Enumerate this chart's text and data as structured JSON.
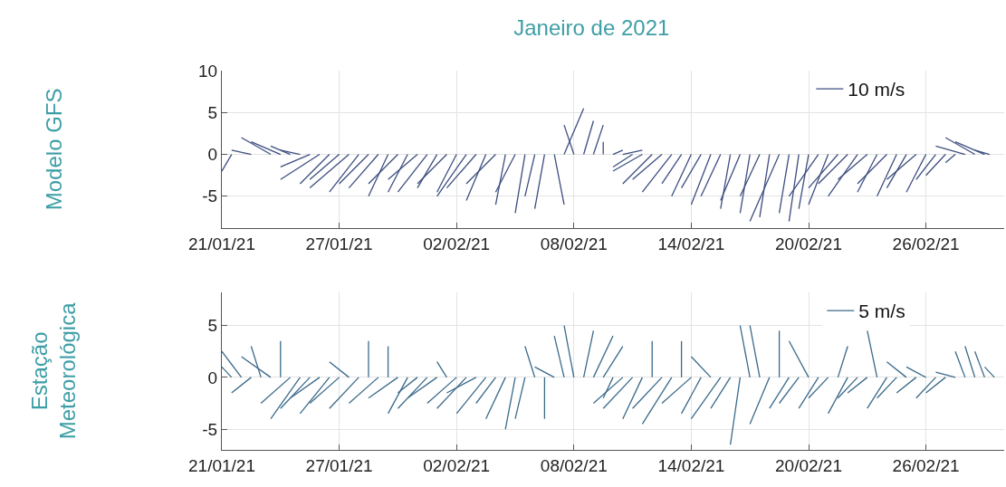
{
  "chart_data": [
    {
      "type": "line",
      "title": "Janeiro de 2021",
      "ylabel": "Modelo GFS",
      "grid": true,
      "legend": "top right",
      "xlim": [
        "2021-01-21",
        "2021-03-02"
      ],
      "ylim": [
        -8.8,
        10
      ],
      "yticks": [
        -5,
        0,
        5,
        10
      ],
      "xticks": [
        {
          "value": "2021-01-21",
          "label": "21/01/21"
        },
        {
          "value": "2021-01-27",
          "label": "27/01/21"
        },
        {
          "value": "2021-02-02",
          "label": "02/02/21"
        },
        {
          "value": "2021-02-08",
          "label": "08/02/21"
        },
        {
          "value": "2021-02-14",
          "label": "14/02/21"
        },
        {
          "value": "2021-02-20",
          "label": "20/02/21"
        },
        {
          "value": "2021-02-26",
          "label": "26/02/21"
        }
      ],
      "series": [
        {
          "name": "10 m/s",
          "color": "#3d4e80",
          "x": [
            "2021-01-21T12:00",
            "2021-01-21T00:00",
            null,
            "2021-01-22T12:00",
            "2021-01-21T12:00",
            null,
            "2021-01-23T12:00",
            "2021-01-22T00:00",
            null,
            "2021-01-24T00:00",
            "2021-01-22T12:00",
            null,
            "2021-01-24T12:00",
            "2021-01-23T12:00",
            null,
            "2021-01-25T00:00",
            "2021-01-24T00:00",
            null,
            "2021-01-25T12:00",
            "2021-01-24T00:00",
            null,
            "2021-01-26T00:00",
            "2021-01-24T00:00",
            null,
            "2021-01-26T12:00",
            "2021-01-25T00:00",
            null,
            "2021-01-27T00:00",
            "2021-01-25T12:00",
            null,
            "2021-01-27T12:00",
            "2021-01-25T12:00",
            null,
            "2021-01-28T00:00",
            "2021-01-26T12:00",
            null,
            "2021-01-28T12:00",
            "2021-01-27T00:00",
            null,
            "2021-01-29T00:00",
            "2021-01-27T12:00",
            null,
            "2021-01-29T12:00",
            "2021-01-28T12:00",
            null,
            "2021-01-30T00:00",
            "2021-01-28T12:00",
            null,
            "2021-01-30T12:00",
            "2021-01-29T12:00",
            null,
            "2021-01-31T00:00",
            "2021-01-29T12:00",
            null,
            "2021-01-31T12:00",
            "2021-01-30T00:00",
            null,
            "2021-02-01T00:00",
            "2021-01-31T00:00",
            null,
            "2021-02-01T12:00",
            "2021-01-31T00:00",
            null,
            "2021-02-02T00:00",
            "2021-02-01T00:00",
            null,
            "2021-02-02T12:00",
            "2021-02-01T00:00",
            null,
            "2021-02-03T00:00",
            "2021-02-01T12:00",
            null,
            "2021-02-03T12:00",
            "2021-02-02T12:00",
            null,
            "2021-02-04T00:00",
            "2021-02-02T12:00",
            null,
            "2021-02-04T12:00",
            "2021-02-04T00:00",
            null,
            "2021-02-05T00:00",
            "2021-02-04T00:00",
            null,
            "2021-02-05T12:00",
            "2021-02-05T00:00",
            null,
            "2021-02-06T00:00",
            "2021-02-05T12:00",
            null,
            "2021-02-06T12:00",
            "2021-02-06T00:00",
            null,
            "2021-02-07T00:00",
            "2021-02-07T12:00",
            null,
            "2021-02-08T00:00",
            "2021-02-07T12:00",
            null,
            "2021-02-07T12:00",
            "2021-02-08T12:00",
            null,
            "2021-02-08T12:00",
            "2021-02-09T00:00",
            null,
            "2021-02-09T00:00",
            "2021-02-09T12:00",
            null,
            "2021-02-09T12:00",
            "2021-02-09T12:00",
            null,
            "2021-02-10T00:00",
            "2021-02-10T12:00",
            null,
            "2021-02-10T12:00",
            "2021-02-11T12:00",
            null,
            "2021-02-11T00:00",
            "2021-02-10T00:00",
            null,
            "2021-02-11T12:00",
            "2021-02-10T00:00",
            null,
            "2021-02-12T00:00",
            "2021-02-10T12:00",
            null,
            "2021-02-12T12:00",
            "2021-02-11T00:00",
            null,
            "2021-02-13T00:00",
            "2021-02-11T12:00",
            null,
            "2021-02-13T12:00",
            "2021-02-12T12:00",
            null,
            "2021-02-14T00:00",
            "2021-02-13T00:00",
            null,
            "2021-02-14T12:00",
            "2021-02-13T12:00",
            null,
            "2021-02-15T00:00",
            "2021-02-14T00:00",
            null,
            "2021-02-15T12:00",
            "2021-02-14T12:00",
            null,
            "2021-02-16T00:00",
            "2021-02-15T12:00",
            null,
            "2021-02-16T12:00",
            "2021-02-15T12:00",
            null,
            "2021-02-17T00:00",
            "2021-02-16T12:00",
            null,
            "2021-02-17T12:00",
            "2021-02-16T12:00",
            null,
            "2021-02-18T00:00",
            "2021-02-17T12:00",
            null,
            "2021-02-18T12:00",
            "2021-02-17T00:00",
            null,
            "2021-02-19T00:00",
            "2021-02-18T12:00",
            null,
            "2021-02-19T12:00",
            "2021-02-19T00:00",
            null,
            "2021-02-20T00:00",
            "2021-02-19T12:00",
            null,
            "2021-02-20T12:00",
            "2021-02-19T00:00",
            null,
            "2021-02-21T00:00",
            "2021-02-20T00:00",
            null,
            "2021-02-21T12:00",
            "2021-02-20T00:00",
            null,
            "2021-02-22T00:00",
            "2021-02-20T12:00",
            null,
            "2021-02-22T12:00",
            "2021-02-21T00:00",
            null,
            "2021-02-23T00:00",
            "2021-02-21T12:00",
            null,
            "2021-02-23T12:00",
            "2021-02-22T12:00",
            null,
            "2021-02-24T00:00",
            "2021-02-22T12:00",
            null,
            "2021-02-24T12:00",
            "2021-02-23T12:00",
            null,
            "2021-02-25T00:00",
            "2021-02-24T00:00",
            null,
            "2021-02-25T12:00",
            "2021-02-24T00:00",
            null,
            "2021-02-26T00:00",
            "2021-02-25T00:00",
            null,
            "2021-02-26T12:00",
            "2021-02-25T12:00",
            null,
            "2021-02-27T00:00",
            "2021-02-26T00:00",
            null,
            "2021-02-27T12:00",
            "2021-02-27T00:00",
            null,
            "2021-02-28T00:00",
            "2021-02-26T12:00",
            null,
            "2021-02-28T12:00",
            "2021-02-27T00:00",
            null,
            "2021-03-01T00:00",
            "2021-02-27T12:00",
            null,
            "2021-03-01T06:00",
            "2021-02-28T12:00"
          ],
          "values": [
            0,
            -2,
            null,
            0,
            0.5,
            null,
            0,
            2,
            null,
            0,
            1.5,
            null,
            0,
            1,
            null,
            0,
            0.5,
            null,
            0,
            -1.5,
            null,
            0,
            -3,
            null,
            0,
            -3.5,
            null,
            0,
            -3,
            null,
            0,
            -4,
            null,
            0,
            -4.5,
            null,
            0,
            -3.5,
            null,
            0,
            -4,
            null,
            0,
            -5,
            null,
            0,
            -3.5,
            null,
            0,
            -4.5,
            null,
            0,
            -3,
            null,
            0,
            -4.5,
            null,
            0,
            -4,
            null,
            0,
            -3.5,
            null,
            0,
            -4.5,
            null,
            0,
            -5,
            null,
            0,
            -4,
            null,
            0,
            -5.5,
            null,
            0,
            -3.5,
            null,
            0,
            -6,
            null,
            0,
            -4.5,
            null,
            0,
            -7,
            null,
            0,
            -5,
            null,
            0,
            -6.5,
            null,
            0,
            -6,
            null,
            0,
            3.5,
            null,
            0,
            5.5,
            null,
            0,
            4,
            null,
            0,
            3.5,
            null,
            0,
            1.5,
            null,
            0,
            0.5,
            null,
            0,
            0.5,
            null,
            0,
            -1.5,
            null,
            0,
            -2,
            null,
            0,
            -3.5,
            null,
            0,
            -3,
            null,
            0,
            -4.5,
            null,
            0,
            -3.5,
            null,
            0,
            -5,
            null,
            0,
            -4,
            null,
            0,
            -6,
            null,
            0,
            -5,
            null,
            0,
            -6.5,
            null,
            0,
            -5.5,
            null,
            0,
            -7,
            null,
            0,
            -5,
            null,
            0,
            -7.5,
            null,
            0,
            -8,
            null,
            0,
            -7,
            null,
            0,
            -8,
            null,
            0,
            -6.5,
            null,
            0,
            -5,
            null,
            0,
            -6,
            null,
            0,
            -4,
            null,
            0,
            -3.5,
            null,
            0,
            -5,
            null,
            0,
            -3,
            null,
            0,
            -4.5,
            null,
            0,
            -3.5,
            null,
            0,
            -5,
            null,
            0,
            -4,
            null,
            0,
            -3,
            null,
            0,
            -4.5,
            null,
            0,
            -3,
            null,
            0,
            -2.5,
            null,
            0,
            -1,
            null,
            0,
            1,
            null,
            0,
            2,
            null,
            0,
            1.5,
            null,
            0,
            0.5
          ]
        }
      ]
    },
    {
      "type": "line",
      "ylabel": "Estação\nMeteorológica",
      "grid": true,
      "legend": "top right",
      "xlim": [
        "2021-01-21",
        "2021-03-02"
      ],
      "ylim": [
        -7,
        8.2
      ],
      "yticks": [
        -5,
        0,
        5
      ],
      "xticks": [
        {
          "value": "2021-01-21",
          "label": "21/01/21"
        },
        {
          "value": "2021-01-27",
          "label": "27/01/21"
        },
        {
          "value": "2021-02-02",
          "label": "02/02/21"
        },
        {
          "value": "2021-02-08",
          "label": "08/02/21"
        },
        {
          "value": "2021-02-14",
          "label": "14/02/21"
        },
        {
          "value": "2021-02-20",
          "label": "20/02/21"
        },
        {
          "value": "2021-02-26",
          "label": "26/02/21"
        }
      ],
      "series": [
        {
          "name": "5 m/s",
          "color": "#3a6a8a",
          "x": [
            "2021-01-21T12:00",
            "2021-01-21T00:00",
            null,
            "2021-01-22T00:00",
            "2021-01-21T00:00",
            null,
            "2021-01-22T12:00",
            "2021-01-21T12:00",
            null,
            "2021-01-23T00:00",
            "2021-01-22T12:00",
            null,
            "2021-01-23T12:00",
            "2021-01-22T00:00",
            null,
            "2021-01-24T00:00",
            "2021-01-24T00:00",
            null,
            "2021-01-24T12:00",
            "2021-01-23T00:00",
            null,
            "2021-01-25T00:00",
            "2021-01-23T12:00",
            null,
            "2021-01-25T12:00",
            "2021-01-24T00:00",
            null,
            "2021-01-26T00:00",
            "2021-01-24T12:00",
            null,
            "2021-01-26T12:00",
            "2021-01-25T00:00",
            null,
            "2021-01-27T00:00",
            "2021-01-25T12:00",
            null,
            "2021-01-27T12:00",
            "2021-01-26T12:00",
            null,
            "2021-01-28T00:00",
            "2021-01-26T12:00",
            null,
            "2021-01-28T12:00",
            "2021-01-28T12:00",
            null,
            "2021-01-29T00:00",
            "2021-01-27T12:00",
            null,
            "2021-01-29T12:00",
            "2021-01-29T12:00",
            null,
            "2021-01-30T00:00",
            "2021-01-28T12:00",
            null,
            "2021-01-30T12:00",
            "2021-01-29T12:00",
            null,
            "2021-01-31T00:00",
            "2021-01-30T00:00",
            null,
            "2021-01-31T12:00",
            "2021-01-30T00:00",
            null,
            "2021-02-01T00:00",
            "2021-01-30T12:00",
            null,
            "2021-02-01T12:00",
            "2021-02-01T00:00",
            null,
            "2021-02-02T00:00",
            "2021-01-31T12:00",
            null,
            "2021-02-02T12:00",
            "2021-02-01T00:00",
            null,
            "2021-02-03T00:00",
            "2021-02-01T12:00",
            null,
            "2021-02-03T12:00",
            "2021-02-02T00:00",
            null,
            "2021-02-04T00:00",
            "2021-02-03T00:00",
            null,
            "2021-02-04T12:00",
            "2021-02-03T12:00",
            null,
            "2021-02-05T00:00",
            "2021-02-04T12:00",
            null,
            "2021-02-05T12:00",
            "2021-02-05T00:00",
            null,
            "2021-02-06T00:00",
            "2021-02-05T12:00",
            null,
            "2021-02-06T12:00",
            "2021-02-06T12:00",
            null,
            "2021-02-07T00:00",
            "2021-02-06T00:00",
            null,
            "2021-02-07T12:00",
            "2021-02-07T00:00",
            null,
            "2021-02-08T00:00",
            "2021-02-07T12:00",
            null,
            "2021-02-08T12:00",
            "2021-02-09T00:00",
            null,
            "2021-02-09T00:00",
            "2021-02-10T00:00",
            null,
            "2021-02-09T12:00",
            "2021-02-10T12:00",
            null,
            "2021-02-10T00:00",
            "2021-02-09T12:00",
            null,
            "2021-02-10T12:00",
            "2021-02-09T00:00",
            null,
            "2021-02-11T00:00",
            "2021-02-09T12:00",
            null,
            "2021-02-11T12:00",
            "2021-02-10T12:00",
            null,
            "2021-02-12T00:00",
            "2021-02-12T00:00",
            null,
            "2021-02-12T12:00",
            "2021-02-11T00:00",
            null,
            "2021-02-13T00:00",
            "2021-02-11T12:00",
            null,
            "2021-02-13T12:00",
            "2021-02-13T12:00",
            null,
            "2021-02-14T00:00",
            "2021-02-12T12:00",
            null,
            "2021-02-14T12:00",
            "2021-02-13T12:00",
            null,
            "2021-02-15T00:00",
            "2021-02-14T00:00",
            null,
            "2021-02-15T12:00",
            "2021-02-14T00:00",
            null,
            "2021-02-16T00:00",
            "2021-02-15T00:00",
            null,
            "2021-02-16T12:00",
            "2021-02-16T00:00",
            null,
            "2021-02-17T00:00",
            "2021-02-16T12:00",
            null,
            "2021-02-17T12:00",
            "2021-02-17T00:00",
            null,
            "2021-02-18T00:00",
            "2021-02-17T00:00",
            null,
            "2021-02-18T12:00",
            "2021-02-18T12:00",
            null,
            "2021-02-19T00:00",
            "2021-02-18T00:00",
            null,
            "2021-02-19T12:00",
            "2021-02-18T12:00",
            null,
            "2021-02-20T00:00",
            "2021-02-19T00:00",
            null,
            "2021-02-20T12:00",
            "2021-02-19T12:00",
            null,
            "2021-02-21T00:00",
            "2021-02-20T00:00",
            null,
            "2021-02-21T12:00",
            "2021-02-22T00:00",
            null,
            "2021-02-22T00:00",
            "2021-02-21T00:00",
            null,
            "2021-02-22T12:00",
            "2021-02-21T12:00",
            null,
            "2021-02-23T00:00",
            "2021-02-22T00:00",
            null,
            "2021-02-23T12:00",
            "2021-02-23T00:00",
            null,
            "2021-02-24T00:00",
            "2021-02-23T00:00",
            null,
            "2021-02-24T12:00",
            "2021-02-23T12:00",
            null,
            "2021-02-25T00:00",
            "2021-02-24T00:00",
            null,
            "2021-02-25T12:00",
            "2021-02-24T12:00",
            null,
            "2021-02-26T00:00",
            "2021-02-25T00:00",
            null,
            "2021-02-26T12:00",
            "2021-02-25T12:00",
            null,
            "2021-02-27T00:00",
            "2021-02-26T00:00",
            null,
            "2021-02-27T12:00",
            "2021-02-26T12:00",
            null,
            "2021-02-28T00:00",
            "2021-02-27T12:00",
            null,
            "2021-02-28T12:00",
            "2021-02-28T00:00",
            null,
            "2021-03-01T00:00",
            "2021-02-28T12:00",
            null,
            "2021-03-01T12:00",
            "2021-03-01T00:00"
          ],
          "values": [
            0,
            1,
            null,
            0,
            2.5,
            null,
            0,
            -1.5,
            null,
            0,
            3,
            null,
            0,
            2,
            null,
            0,
            3.5,
            null,
            0,
            -2.5,
            null,
            0,
            -4,
            null,
            0,
            -3,
            null,
            0,
            -2,
            null,
            0,
            -3.5,
            null,
            0,
            -2.5,
            null,
            0,
            1.5,
            null,
            0,
            -3,
            null,
            0,
            3.5,
            null,
            0,
            -2.5,
            null,
            0,
            3,
            null,
            0,
            -2,
            null,
            0,
            -3.5,
            null,
            0,
            -1.5,
            null,
            0,
            -3,
            null,
            0,
            -2,
            null,
            0,
            1.5,
            null,
            0,
            -2.5,
            null,
            0,
            -3,
            null,
            0,
            -1.5,
            null,
            0,
            -3.5,
            null,
            0,
            -2.5,
            null,
            0,
            -4,
            null,
            0,
            -5,
            null,
            0,
            -4,
            null,
            0,
            3,
            null,
            0,
            -4,
            null,
            0,
            1,
            null,
            0,
            4,
            null,
            0,
            5,
            null,
            0,
            4.5,
            null,
            0,
            4,
            null,
            0,
            3,
            null,
            0,
            -2,
            null,
            0,
            -2.5,
            null,
            0,
            -3,
            null,
            0,
            -4,
            null,
            0,
            3.5,
            null,
            0,
            -3,
            null,
            0,
            -4.5,
            null,
            0,
            3.5,
            null,
            0,
            -2.5,
            null,
            0,
            -3.5,
            null,
            0,
            2,
            null,
            0,
            -4,
            null,
            0,
            -3,
            null,
            0,
            -6.5,
            null,
            0,
            5,
            null,
            0,
            5,
            null,
            0,
            -4.5,
            null,
            0,
            4.5,
            null,
            0,
            -3,
            null,
            0,
            -2.5,
            null,
            0,
            3.5,
            null,
            0,
            -3,
            null,
            0,
            -2,
            null,
            0,
            3,
            null,
            0,
            -3.5,
            null,
            0,
            -2,
            null,
            0,
            -1.5,
            null,
            0,
            4.5,
            null,
            0,
            -3,
            null,
            0,
            -2,
            null,
            0,
            1.5,
            null,
            0,
            -1.5,
            null,
            0,
            1,
            null,
            0,
            -2,
            null,
            0,
            -1.5,
            null,
            0,
            0.5,
            null,
            0,
            2.5,
            null,
            0,
            3,
            null,
            0,
            2.5,
            null,
            0,
            1
          ]
        }
      ]
    }
  ]
}
